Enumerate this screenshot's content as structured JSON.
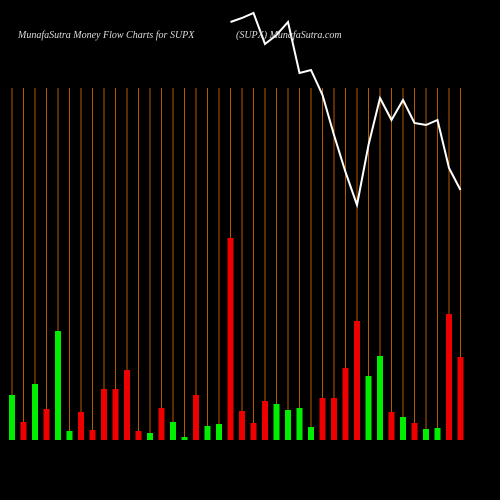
{
  "chart_data": {
    "type": "bar",
    "title": "MunafaSutra  Money Flow  Charts for SUPX",
    "subtitle": "(SUPX) MunafaSutra.com",
    "categories": [
      null,
      null,
      null,
      null,
      null,
      null,
      null,
      null,
      null,
      null,
      null,
      null,
      null,
      null,
      null,
      null,
      null,
      null,
      null,
      null,
      null,
      null,
      null,
      null,
      null,
      null,
      null,
      null,
      null,
      null,
      null,
      null,
      null,
      null,
      null,
      null,
      null,
      null,
      null,
      null
    ],
    "values": [
      45,
      18,
      56,
      31,
      109,
      9,
      28,
      10,
      51,
      51,
      70,
      9,
      7,
      32,
      18,
      3,
      45,
      14,
      16,
      202,
      29,
      17,
      39,
      36,
      30,
      32,
      13,
      42,
      42,
      72,
      119,
      64,
      84,
      28,
      23,
      17,
      11,
      12,
      126,
      83
    ],
    "colors": [
      "#00ee00",
      "#ee0000",
      "#00ee00",
      "#ee0000",
      "#00ee00",
      "#00ee00",
      "#ee0000",
      "#ee0000",
      "#ee0000",
      "#ee0000",
      "#ee0000",
      "#ee0000",
      "#00ee00",
      "#ee0000",
      "#00ee00",
      "#00ee00",
      "#ee0000",
      "#00ee00",
      "#00ee00",
      "#ee0000",
      "#ee0000",
      "#ee0000",
      "#ee0000",
      "#00ee00",
      "#00ee00",
      "#00ee00",
      "#00ee00",
      "#ee0000",
      "#ee0000",
      "#ee0000",
      "#ee0000",
      "#00ee00",
      "#00ee00",
      "#ee0000",
      "#00ee00",
      "#ee0000",
      "#00ee00",
      "#00ee00",
      "#ee0000",
      "#ee0000"
    ],
    "line": {
      "color": "#ffffff",
      "values": [
        null,
        null,
        null,
        null,
        null,
        null,
        null,
        null,
        null,
        null,
        null,
        null,
        null,
        null,
        null,
        null,
        null,
        null,
        null,
        478,
        482,
        487,
        456,
        465,
        478,
        427,
        430,
        405,
        365,
        328,
        295,
        355,
        402,
        380,
        400,
        377,
        375,
        380,
        332,
        310
      ]
    },
    "grid_color": "#b35900"
  }
}
